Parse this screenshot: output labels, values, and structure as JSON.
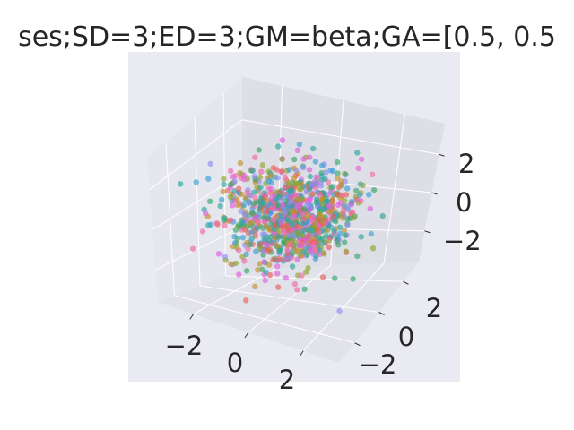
{
  "chart_data": {
    "type": "scatter",
    "projection": "3d",
    "title": "ses;SD=3;ED=3;GM=beta;GA=[0.5, 0.5",
    "xlabel": "",
    "ylabel": "",
    "zlabel": "",
    "xlim": [
      -3.3,
      3.3
    ],
    "ylim": [
      -3.3,
      3.3
    ],
    "zlim": [
      -3.6,
      3.6
    ],
    "x_ticks": [
      "−2",
      "0",
      "2"
    ],
    "x_tick_values": [
      -2,
      0,
      2
    ],
    "y_ticks": [
      "−2",
      "0",
      "2"
    ],
    "y_tick_values": [
      -2,
      0,
      2
    ],
    "z_ticks": [
      "2",
      "0",
      "−2"
    ],
    "z_tick_values": [
      2,
      0,
      -2
    ],
    "grid": true,
    "legend": "none",
    "n_points": 1000,
    "marker_opacity": 0.65,
    "series_colors": [
      "#e8605b",
      "#c4912e",
      "#8fa52c",
      "#34a86b",
      "#2ea6a0",
      "#3a9fd6",
      "#8f8ff0",
      "#e15ee0",
      "#f06aa5"
    ],
    "background": "#eaeaf2",
    "pane_colors": {
      "left": "#e6e6ee",
      "right": "#dedee6",
      "floor": "#e2e2ea"
    }
  }
}
